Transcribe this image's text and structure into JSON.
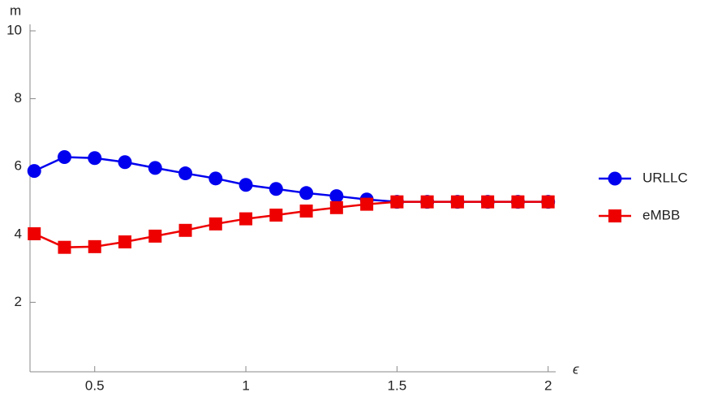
{
  "chart_data": {
    "type": "line",
    "x_label": "ϵ",
    "y_label": "m",
    "x": [
      0.3,
      0.4,
      0.5,
      0.6,
      0.7,
      0.8,
      0.9,
      1.0,
      1.1,
      1.2,
      1.3,
      1.4,
      1.5,
      1.6,
      1.7,
      1.8,
      1.9,
      2.0
    ],
    "series": [
      {
        "name": "URLLC",
        "color": "#0000ee",
        "marker": "circle",
        "values": [
          5.87,
          6.28,
          6.25,
          6.13,
          5.96,
          5.8,
          5.65,
          5.46,
          5.34,
          5.22,
          5.13,
          5.03,
          4.96,
          4.96,
          4.96,
          4.96,
          4.96,
          4.96
        ]
      },
      {
        "name": "eMBB",
        "color": "#ee0000",
        "marker": "square",
        "values": [
          4.02,
          3.62,
          3.64,
          3.78,
          3.95,
          4.12,
          4.31,
          4.46,
          4.57,
          4.69,
          4.79,
          4.89,
          4.96,
          4.96,
          4.96,
          4.96,
          4.96,
          4.96
        ]
      }
    ],
    "xlim": [
      0.286,
      2.025
    ],
    "ylim": [
      0,
      10
    ],
    "xticks": [
      0.5,
      1.0,
      1.5,
      2.0
    ],
    "yticks": [
      2,
      4,
      6,
      8,
      10
    ],
    "legend": "right"
  }
}
